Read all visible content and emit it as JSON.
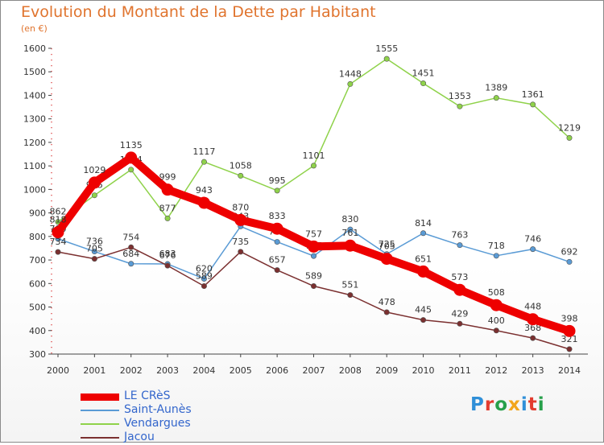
{
  "title": "Evolution du Montant de la Dette par Habitant",
  "unit_label": "(en €)",
  "brand": {
    "text": "Proxiti",
    "letter_colors": [
      "#2f8fd8",
      "#e23b2e",
      "#27a04a",
      "#f2a51c",
      "#2f8fd8",
      "#e23b2e",
      "#27a04a"
    ]
  },
  "chart_data": {
    "type": "line",
    "title": "Evolution du Montant de la Dette par Habitant",
    "ylabel": "(en €)",
    "xlabel": "",
    "x": [
      "2000",
      "2001",
      "2002",
      "2003",
      "2004",
      "2005",
      "2006",
      "2007",
      "2008",
      "2009",
      "2010",
      "2011",
      "2012",
      "2013",
      "2014"
    ],
    "ylim": [
      300,
      1600
    ],
    "yticks": [
      300,
      400,
      500,
      600,
      700,
      800,
      900,
      1000,
      1100,
      1200,
      1300,
      1400,
      1500,
      1600
    ],
    "grid": false,
    "legend_position": "bottom-left",
    "series": [
      {
        "name": "Vendargues",
        "color": "#8fd24a",
        "width": 1.5,
        "values": [
          862,
          975,
          1084,
          877,
          1117,
          1058,
          995,
          1101,
          1448,
          1555,
          1451,
          1353,
          1389,
          1361,
          1219
        ],
        "labels": [
          "862",
          "975",
          "1084",
          "877",
          "1117",
          "1058",
          "995",
          "1101",
          "1448",
          "1555",
          "1451",
          "1353",
          "1389",
          "1361",
          "1219"
        ]
      },
      {
        "name": "Saint-Aunès",
        "color": "#5a9bd5",
        "width": 1.5,
        "values": [
          790,
          736,
          684,
          683,
          620,
          843,
          777,
          717,
          830,
          725,
          814,
          763,
          718,
          746,
          692
        ],
        "labels": [
          "790",
          "736",
          "684",
          "683",
          "620",
          "843",
          "777",
          "717",
          "830",
          "725",
          "814",
          "763",
          "718",
          "746",
          "692"
        ]
      },
      {
        "name": "Jacou",
        "color": "#7b3030",
        "width": 1.5,
        "values": [
          734,
          705,
          754,
          676,
          589,
          735,
          657,
          589,
          551,
          478,
          445,
          429,
          400,
          368,
          321
        ],
        "labels": [
          "734",
          "705",
          "754",
          "676",
          "589",
          "735",
          "657",
          "589",
          "551",
          "478",
          "445",
          "429",
          "400",
          "368",
          "321"
        ]
      },
      {
        "name": "LE CRèS",
        "color": "#ee0000",
        "width": 10,
        "values": [
          818,
          1029,
          1135,
          999,
          943,
          870,
          833,
          757,
          761,
          705,
          651,
          573,
          508,
          448,
          398
        ],
        "labels": [
          "818",
          "1029",
          "1135",
          "999",
          "943",
          "870",
          "833",
          "757",
          "761",
          "705",
          "651",
          "573",
          "508",
          "448",
          "398"
        ]
      }
    ]
  },
  "legend": [
    {
      "name": "LE CRèS",
      "color": "#ee0000",
      "width": 9
    },
    {
      "name": "Saint-Aunès",
      "color": "#5a9bd5",
      "width": 2
    },
    {
      "name": "Vendargues",
      "color": "#8fd24a",
      "width": 2
    },
    {
      "name": "Jacou",
      "color": "#7b3030",
      "width": 2
    }
  ]
}
